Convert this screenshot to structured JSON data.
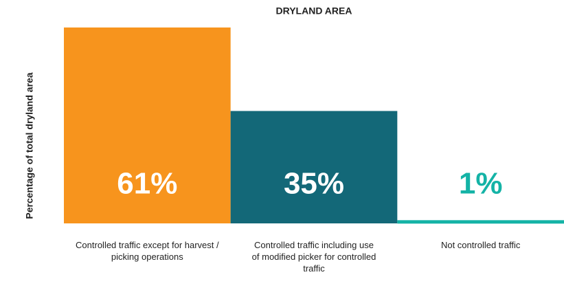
{
  "chart_data": {
    "type": "bar",
    "title": "DRYLAND AREA",
    "ylabel": "Percentage of total dryland area",
    "categories": [
      "Controlled traffic except for harvest / picking operations",
      "Controlled traffic including use of modified picker for controlled traffic",
      "Not controlled traffic"
    ],
    "values": [
      61,
      35,
      1
    ],
    "value_labels": [
      "61%",
      "35%",
      "1%"
    ],
    "colors": [
      "#f7941d",
      "#136878",
      "#14b3a6"
    ],
    "ylim": [
      0,
      61
    ]
  }
}
